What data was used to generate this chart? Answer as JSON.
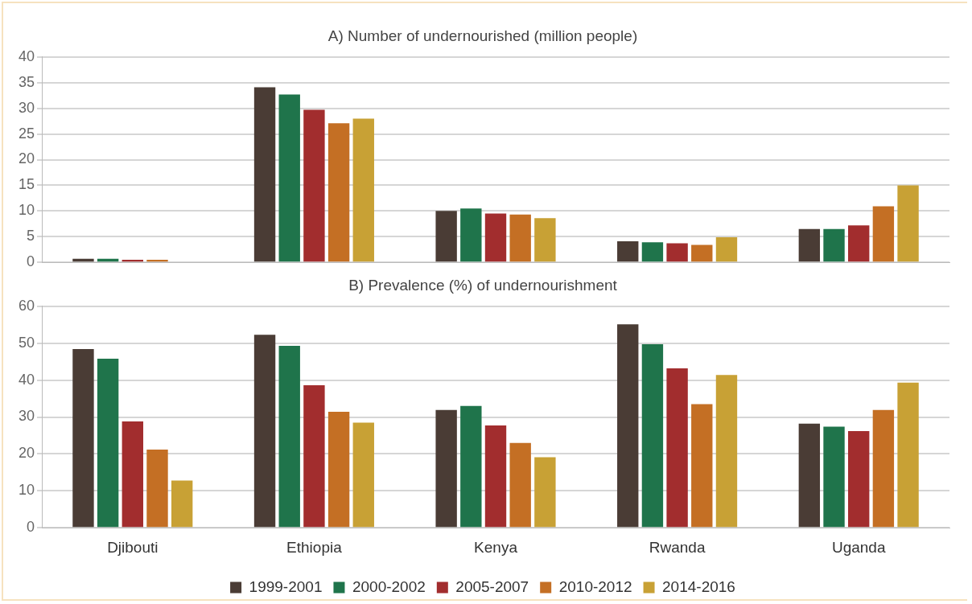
{
  "chart_data": [
    {
      "type": "bar",
      "title": "A) Number of undernourished (million people)",
      "categories": [
        null,
        null,
        null,
        null,
        null
      ],
      "series": [
        {
          "color": "#4a3c35",
          "values": [
            0.7,
            34.1,
            10.0,
            4.1,
            6.5
          ]
        },
        {
          "color": "#1f744b",
          "values": [
            0.7,
            32.7,
            10.5,
            3.9,
            6.5
          ]
        },
        {
          "color": "#a22d2e",
          "values": [
            0.5,
            29.7,
            9.5,
            3.7,
            7.2
          ]
        },
        {
          "color": "#c46f24",
          "values": [
            0.5,
            27.1,
            9.3,
            3.4,
            10.9
          ]
        },
        {
          "color": "#c8a135",
          "values": [
            null,
            28.0,
            8.6,
            4.9,
            15.0
          ]
        }
      ],
      "ylim": [
        0,
        40
      ],
      "yticks": [
        0,
        5,
        10,
        15,
        20,
        25,
        30,
        35,
        40
      ],
      "grid": "y",
      "legend": false,
      "tick_labels": "y"
    },
    {
      "type": "bar",
      "title": "B) Prevalence (%) of undernourishment",
      "categories": [
        "Djibouti",
        "Ethiopia",
        "Kenya",
        "Rwanda",
        "Uganda"
      ],
      "series": [
        {
          "name": "1999-2001",
          "color": "#4a3c35",
          "values": [
            48.4,
            52.3,
            31.9,
            55.1,
            28.2
          ]
        },
        {
          "name": "2000-2002",
          "color": "#1f744b",
          "values": [
            45.8,
            49.3,
            33.0,
            49.7,
            27.4
          ]
        },
        {
          "name": "2005-2007",
          "color": "#a22d2e",
          "values": [
            28.8,
            38.6,
            27.7,
            43.2,
            26.2
          ]
        },
        {
          "name": "2010-2012",
          "color": "#c46f24",
          "values": [
            21.2,
            31.4,
            23.0,
            33.5,
            31.9
          ]
        },
        {
          "name": "2014-2016",
          "color": "#c8a135",
          "values": [
            12.8,
            28.5,
            19.1,
            41.4,
            39.3
          ]
        }
      ],
      "ylim": [
        0,
        60
      ],
      "yticks": [
        0,
        10,
        20,
        30,
        40,
        50,
        60
      ],
      "grid": "y",
      "legend": "bottom"
    }
  ]
}
